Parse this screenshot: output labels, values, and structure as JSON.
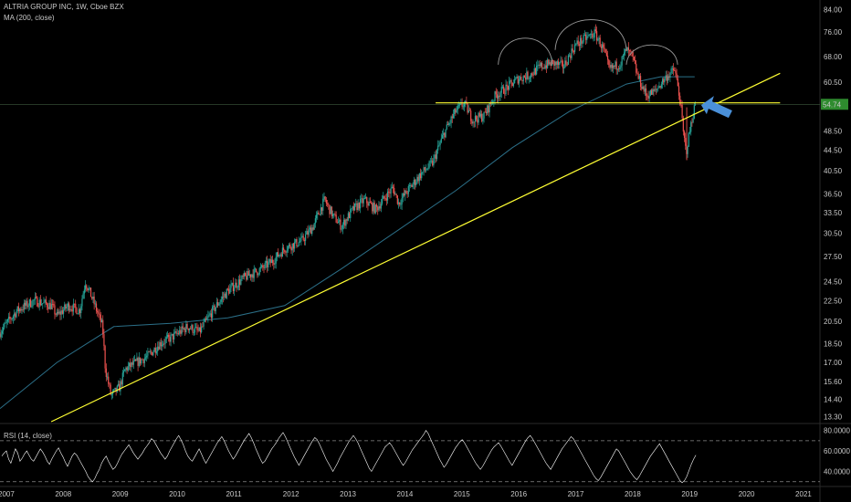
{
  "header": {
    "title": "ALTRIA GROUP INC, 1W, Cboe BZX",
    "ma_label": "MA (200, close)",
    "rsi_label": "RSI (14, close)"
  },
  "price_badge": {
    "value": "54.74",
    "color": "#2e8b2e"
  },
  "colors": {
    "background": "#000000",
    "up_candle": "#26a69a",
    "down_candle": "#ef5350",
    "ma_line": "#2b6f88",
    "trendlines": "#ffff33",
    "arrow": "#4a90d9",
    "rsi_line": "#ffffff"
  },
  "chart_data": [
    {
      "type": "candlestick",
      "title": "ALTRIA GROUP INC, 1W, Cboe BZX",
      "x_ticks": [
        "2007",
        "2008",
        "2009",
        "2010",
        "2011",
        "2012",
        "2013",
        "2014",
        "2015",
        "2016",
        "2017",
        "2018",
        "2019",
        "2020",
        "2021"
      ],
      "y_ticks": [
        "84.00",
        "76.00",
        "68.00",
        "60.50",
        "54.74",
        "48.50",
        "44.50",
        "40.50",
        "36.50",
        "33.50",
        "30.50",
        "27.50",
        "24.50",
        "22.50",
        "20.50",
        "18.50",
        "17.00",
        "15.60",
        "14.40",
        "13.30"
      ],
      "y_scale": "log",
      "ylim": [
        13.0,
        86.0
      ],
      "x_range": [
        2007.0,
        2021.4
      ],
      "price_path": [
        [
          2007.0,
          19.5
        ],
        [
          2007.3,
          21.5
        ],
        [
          2007.6,
          22.5
        ],
        [
          2007.9,
          22.0
        ],
        [
          2008.0,
          21.0
        ],
        [
          2008.2,
          22.0
        ],
        [
          2008.4,
          21.5
        ],
        [
          2008.5,
          24.5
        ],
        [
          2008.6,
          23.0
        ],
        [
          2008.8,
          20.0
        ],
        [
          2008.85,
          16.5
        ],
        [
          2008.95,
          14.6
        ],
        [
          2009.1,
          15.2
        ],
        [
          2009.2,
          16.5
        ],
        [
          2009.4,
          17.0
        ],
        [
          2009.6,
          17.5
        ],
        [
          2009.8,
          18.5
        ],
        [
          2010.0,
          19.0
        ],
        [
          2010.3,
          20.0
        ],
        [
          2010.5,
          19.5
        ],
        [
          2010.8,
          22.0
        ],
        [
          2011.0,
          23.5
        ],
        [
          2011.3,
          25.0
        ],
        [
          2011.6,
          26.0
        ],
        [
          2011.8,
          27.0
        ],
        [
          2012.0,
          28.5
        ],
        [
          2012.3,
          29.5
        ],
        [
          2012.5,
          31.5
        ],
        [
          2012.7,
          35.5
        ],
        [
          2012.85,
          33.0
        ],
        [
          2013.0,
          31.5
        ],
        [
          2013.2,
          34.0
        ],
        [
          2013.4,
          35.5
        ],
        [
          2013.6,
          34.0
        ],
        [
          2013.9,
          37.5
        ],
        [
          2014.0,
          35.0
        ],
        [
          2014.2,
          37.5
        ],
        [
          2014.4,
          40.0
        ],
        [
          2014.6,
          42.0
        ],
        [
          2014.8,
          48.0
        ],
        [
          2015.0,
          53.0
        ],
        [
          2015.15,
          55.0
        ],
        [
          2015.3,
          51.0
        ],
        [
          2015.5,
          52.0
        ],
        [
          2015.7,
          57.0
        ],
        [
          2015.9,
          59.0
        ],
        [
          2016.1,
          61.5
        ],
        [
          2016.3,
          62.5
        ],
        [
          2016.5,
          65.0
        ],
        [
          2016.7,
          66.0
        ],
        [
          2016.9,
          65.0
        ],
        [
          2017.1,
          71.5
        ],
        [
          2017.3,
          74.0
        ],
        [
          2017.45,
          75.5
        ],
        [
          2017.6,
          70.0
        ],
        [
          2017.7,
          64.0
        ],
        [
          2017.9,
          66.0
        ],
        [
          2018.0,
          70.0
        ],
        [
          2018.1,
          68.0
        ],
        [
          2018.2,
          62.0
        ],
        [
          2018.35,
          57.0
        ],
        [
          2018.5,
          58.0
        ],
        [
          2018.7,
          62.0
        ],
        [
          2018.85,
          64.0
        ],
        [
          2018.95,
          55.0
        ],
        [
          2019.0,
          48.0
        ],
        [
          2019.05,
          44.0
        ],
        [
          2019.15,
          51.0
        ],
        [
          2019.22,
          55.5
        ]
      ],
      "moving_average": {
        "name": "MA (200, close)",
        "points": [
          [
            2007.0,
            13.8
          ],
          [
            2008.0,
            17.0
          ],
          [
            2009.0,
            20.0
          ],
          [
            2010.0,
            20.3
          ],
          [
            2011.0,
            20.8
          ],
          [
            2012.0,
            22.0
          ],
          [
            2013.0,
            26.0
          ],
          [
            2014.0,
            31.0
          ],
          [
            2015.0,
            37.0
          ],
          [
            2016.0,
            45.0
          ],
          [
            2017.0,
            53.0
          ],
          [
            2018.0,
            60.0
          ],
          [
            2018.6,
            62.0
          ],
          [
            2019.2,
            62.0
          ]
        ]
      },
      "annotations": {
        "support_line": {
          "y": 55.1,
          "x_from": 2014.65,
          "x_to": 2020.7
        },
        "rising_trendline": {
          "from": [
            2007.9,
            13.0
          ],
          "to": [
            2020.7,
            63.0
          ]
        },
        "head_shoulders_arcs": [
          {
            "x_from": 2015.75,
            "x_to": 2016.7,
            "low": 65.5,
            "peak": 75.0
          },
          {
            "x_from": 2016.75,
            "x_to": 2018.0,
            "low": 70.0,
            "peak": 82.0
          },
          {
            "x_from": 2018.0,
            "x_to": 2018.9,
            "low": 65.5,
            "peak": 72.0
          }
        ],
        "arrow_target": [
          2019.25,
          55.0
        ]
      },
      "current_price": 54.74
    },
    {
      "type": "line",
      "title": "RSI (14, close)",
      "y_ticks": [
        "80.0000",
        "60.0000",
        "40.0000"
      ],
      "ylim": [
        28,
        85
      ],
      "reference_lines": [
        70,
        30
      ],
      "values": [
        55,
        58,
        60,
        52,
        48,
        55,
        62,
        58,
        50,
        53,
        57,
        60,
        56,
        52,
        50,
        54,
        58,
        62,
        59,
        55,
        50,
        47,
        52,
        56,
        60,
        63,
        58,
        54,
        49,
        45,
        50,
        55,
        58,
        56,
        52,
        48,
        44,
        40,
        35,
        32,
        30,
        33,
        38,
        42,
        48,
        52,
        55,
        50,
        46,
        42,
        44,
        48,
        53,
        57,
        60,
        63,
        66,
        62,
        58,
        55,
        52,
        55,
        58,
        62,
        65,
        68,
        72,
        70,
        66,
        62,
        58,
        55,
        52,
        55,
        60,
        64,
        68,
        72,
        75,
        71,
        66,
        60,
        55,
        52,
        50,
        54,
        58,
        62,
        57,
        52,
        48,
        52,
        56,
        60,
        64,
        68,
        71,
        74,
        70,
        65,
        60,
        56,
        52,
        55,
        59,
        63,
        67,
        71,
        74,
        77,
        73,
        68,
        62,
        57,
        52,
        48,
        50,
        54,
        58,
        62,
        65,
        68,
        72,
        75,
        78,
        74,
        69,
        64,
        59,
        54,
        50,
        46,
        50,
        54,
        58,
        62,
        66,
        70,
        73,
        71,
        67,
        62,
        57,
        52,
        48,
        44,
        40,
        44,
        48,
        53,
        57,
        61,
        65,
        69,
        72,
        75,
        72,
        68,
        63,
        58,
        53,
        48,
        43,
        40,
        44,
        48,
        52,
        56,
        60,
        64,
        66,
        68,
        65,
        61,
        57,
        53,
        49,
        46,
        49,
        53,
        57,
        61,
        64,
        67,
        70,
        73,
        76,
        80,
        77,
        72,
        67,
        62,
        57,
        52,
        48,
        44,
        47,
        51,
        55,
        59,
        63,
        66,
        69,
        71,
        68,
        64,
        60,
        56,
        52,
        48,
        45,
        42,
        45,
        49,
        53,
        57,
        61,
        64,
        66,
        68,
        65,
        61,
        57,
        53,
        49,
        46,
        50,
        54,
        58,
        62,
        66,
        70,
        73,
        75,
        72,
        68,
        64,
        60,
        56,
        52,
        48,
        45,
        42,
        46,
        50,
        54,
        58,
        62,
        65,
        68,
        71,
        74,
        72,
        68,
        64,
        60,
        56,
        52,
        48,
        44,
        40,
        36,
        33,
        31,
        34,
        38,
        42,
        46,
        50,
        54,
        58,
        62,
        60,
        56,
        52,
        48,
        44,
        40,
        37,
        34,
        32,
        35,
        39,
        43,
        47,
        51,
        55,
        58,
        61,
        64,
        67,
        63,
        59,
        55,
        51,
        47,
        43,
        39,
        35,
        31,
        29,
        31,
        35,
        41,
        47,
        52,
        56
      ]
    }
  ]
}
